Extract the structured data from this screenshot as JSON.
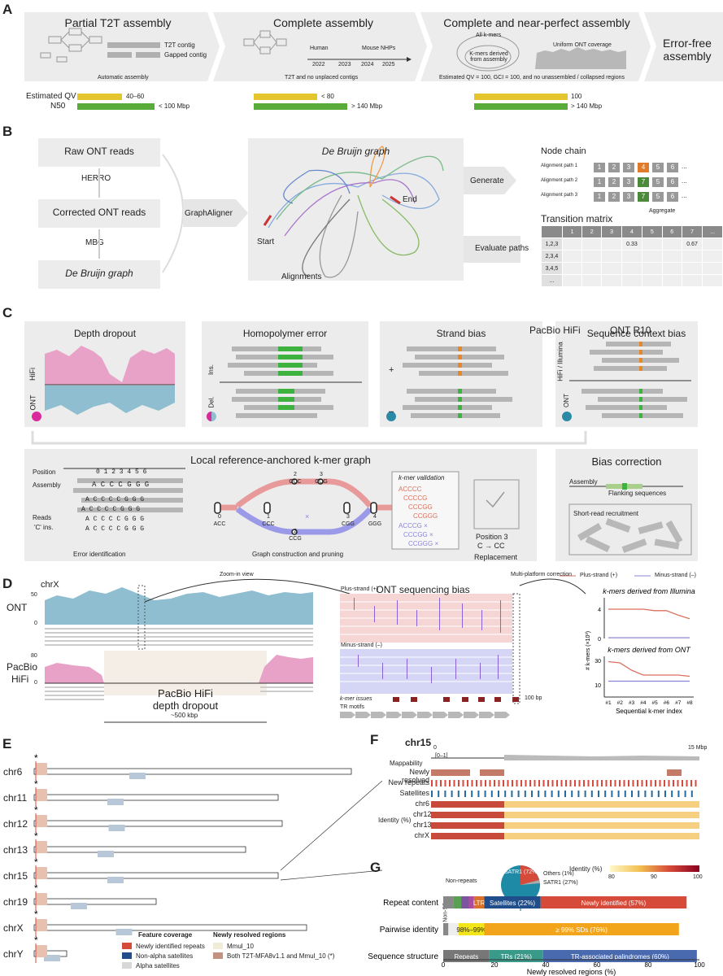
{
  "panels": {
    "a": "A",
    "b": "B",
    "c": "C",
    "d": "D",
    "e": "E",
    "f": "F",
    "g": "G"
  },
  "panelA": {
    "stage1": {
      "title": "Partial T2T assembly",
      "contig1": "T2T contig",
      "contig2": "Gapped contig",
      "caption": "Automatic assembly"
    },
    "stage2": {
      "title": "Complete assembly",
      "species": [
        "Human",
        "Mouse",
        "NHPs"
      ],
      "years": [
        "2022",
        "2023",
        "2024",
        "2025"
      ],
      "caption": "T2T and no unplaced contigs"
    },
    "stage3": {
      "title": "Complete and near-perfect assembly",
      "kmers": "All k-mers",
      "kmers_derived": "K-mers derived from assembly",
      "coverage": "Uniform ONT coverage",
      "caption": "Estimated QV = 100, GCI = 100, and no unassembled / collapsed regions"
    },
    "stage4": {
      "title": "Error-free assembly"
    },
    "metric_qv": "Estimated QV",
    "metric_n50": "N50",
    "qv_values": [
      "40–60",
      "< 80",
      "100"
    ],
    "n50_values": [
      "< 100 Mbp",
      "> 140 Mbp",
      "> 140 Mbp"
    ]
  },
  "panelB": {
    "raw": "Raw ONT reads",
    "herro": "HERRO",
    "corrected": "Corrected ONT reads",
    "mbg": "MBG",
    "dbg": "De Bruijn graph",
    "graphaligner": "GraphAligner",
    "graph_title": "De Bruijn graph",
    "start": "Start",
    "end": "End",
    "alignments": "Alignments",
    "generate": "Generate",
    "evaluate": "Evaluate paths",
    "node_chain": "Node chain",
    "paths": [
      "Alignment path 1",
      "Alignment path 2",
      "Alignment path 3"
    ],
    "path_nodes": [
      [
        "1",
        "2",
        "3",
        "4",
        "5",
        "6",
        "..."
      ],
      [
        "1",
        "2",
        "3",
        "7",
        "5",
        "6",
        "..."
      ],
      [
        "1",
        "2",
        "3",
        "7",
        "5",
        "6",
        "..."
      ]
    ],
    "aggregate": "Aggregate",
    "matrix_title": "Transition matrix",
    "matrix_header": [
      "",
      "1",
      "2",
      "3",
      "4",
      "5",
      "6",
      "7",
      "..."
    ],
    "matrix_rows": [
      [
        "1,2,3",
        "",
        "",
        "",
        "0.33",
        "",
        "",
        "0.67",
        ""
      ],
      [
        "2,3,4",
        "",
        "",
        "",
        "",
        "",
        "",
        "",
        ""
      ],
      [
        "3,4,5",
        "",
        "",
        "",
        "",
        "",
        "",
        "",
        ""
      ],
      [
        "...",
        "",
        "",
        "",
        "",
        "",
        "",
        "",
        ""
      ]
    ]
  },
  "panelC": {
    "legend_hifi": "PacBio HiFi",
    "legend_ont": "ONT R10",
    "depth": "Depth dropout",
    "homopolymer": "Homopolymer error",
    "strand": "Strand bias",
    "context": "Sequence context bias",
    "hifi_lab": "HiFi",
    "ont_lab": "ONT",
    "ins": "Ins.",
    "del": "Del.",
    "hifi_illumina": "HiFi / Illumina",
    "plus": "+",
    "minus": "–",
    "graph_title": "Local reference-anchored k-mer graph",
    "position": "Position",
    "positions": "0 1 2 3 4 5 6",
    "assembly": "Assembly",
    "assembly_seq": "A C C C G G G",
    "reads": "Reads",
    "c_ins": "'C' ins.",
    "read_seqs": [
      "A C C C C G G G",
      "A C C C C G G G",
      "A C C C C G G G",
      "A C C C C G G G"
    ],
    "error_id": "Error identification",
    "graph_build": "Graph construction and pruning",
    "kmer_nodes": [
      {
        "n": "0",
        "s": "ACC"
      },
      {
        "n": "1",
        "s": "CCC"
      },
      {
        "n": "2",
        "s": "CCC"
      },
      {
        "n": "3",
        "s": "CCG"
      },
      {
        "n": "2",
        "s": "CCG"
      },
      {
        "n": "3",
        "s": "CGG"
      },
      {
        "n": "4",
        "s": "GGG"
      }
    ],
    "kmer_validation": "k-mer validation",
    "valid_kmers": [
      "ACCCC",
      "CCCCG",
      "CCCGG",
      "CCGGG"
    ],
    "invalid_kmers": [
      "ACCCG",
      "CCCGG",
      "CCGGG"
    ],
    "position3": "Position 3",
    "change": "C → CC",
    "replacement": "Replacement",
    "bias_correction": "Bias correction",
    "assembly2": "Assembly",
    "flanking": "Flanking sequences",
    "recruitment": "Short-read recruitment"
  },
  "panelD": {
    "chr": "chrX",
    "ont": "ONT",
    "pacbio": "PacBio",
    "hifi": "HiFi",
    "ont_max": "50",
    "ont_min": "0",
    "hifi_max": "80",
    "hifi_min": "0",
    "dropout": "PacBio HiFi depth dropout",
    "span": "~500 kbp",
    "zoom": "Zoom-in view",
    "bias_title": "ONT sequencing bias",
    "plus_strand": "Plus-strand (+)",
    "minus_strand": "Minus-strand (–)",
    "kmer_issues": "k-mer issues",
    "tr_motifs": "TR motifs",
    "scale": "100 bp",
    "multi": "Multi-platform correction",
    "legend_plus": "Plus-strand (+)",
    "legend_minus": "Minus-strand (–)"
  },
  "chart_data": [
    {
      "type": "line",
      "title": "k-mers derived from Illumina",
      "xlabel": "Sequential k-mer index",
      "ylabel": "# k-mers (×10³)",
      "categories": [
        "#1",
        "#2",
        "#3",
        "#4",
        "#5",
        "#6",
        "#7",
        "#8"
      ],
      "ylim": [
        0,
        5
      ],
      "series": [
        {
          "name": "Plus-strand (+)",
          "color": "#d9725f",
          "values": [
            4,
            4,
            4,
            4,
            3.8,
            3.8,
            3.2,
            2.7
          ]
        },
        {
          "name": "Minus-strand (–)",
          "color": "#8a86d6",
          "values": [
            0.1,
            0.1,
            0.1,
            0.1,
            0.1,
            0.1,
            0.1,
            0.1
          ]
        }
      ]
    },
    {
      "type": "line",
      "title": "k-mers derived from ONT",
      "xlabel": "Sequential k-mer index",
      "ylabel": "# k-mers (×10³)",
      "categories": [
        "#1",
        "#2",
        "#3",
        "#4",
        "#5",
        "#6",
        "#7",
        "#8"
      ],
      "ylim": [
        0,
        30
      ],
      "series": [
        {
          "name": "Plus-strand (+)",
          "color": "#d9725f",
          "values": [
            29,
            28,
            22,
            18,
            18,
            18,
            18,
            17
          ]
        },
        {
          "name": "Minus-strand (–)",
          "color": "#8a86d6",
          "values": [
            13,
            13,
            13,
            13,
            13,
            13,
            13,
            13
          ]
        }
      ]
    },
    {
      "type": "bar",
      "title": "",
      "xlabel": "Newly resolved regions (%)",
      "xlim": [
        0,
        100
      ],
      "xticks": [
        "0",
        "20",
        "40",
        "60",
        "80",
        "100"
      ],
      "rows": [
        {
          "label": "Repeat content",
          "segments": [
            {
              "label": "",
              "value": 4,
              "color": "#888"
            },
            {
              "label": "",
              "value": 3,
              "color": "#5aa052"
            },
            {
              "label": "",
              "value": 3,
              "color": "#7b55a0"
            },
            {
              "label": "",
              "value": 2,
              "color": "#b04aa0"
            },
            {
              "label": "LTR",
              "value": 4,
              "color": "#d9712a"
            },
            {
              "label": "Satellites (22%)",
              "value": 22,
              "color": "#204e8a"
            },
            {
              "label": "Newly identified (57%)",
              "value": 57,
              "color": "#d64a3a"
            }
          ]
        },
        {
          "label": "Pairwise identity",
          "segments": [
            {
              "label": "",
              "value": 2,
              "color": "#888"
            },
            {
              "label": "",
              "value": 4,
              "color": "#eee"
            },
            {
              "label": "98%–99%",
              "value": 10,
              "color": "#f2e51a"
            },
            {
              "label": "≥ 99% SDs (76%)",
              "value": 76,
              "color": "#f2a51a"
            }
          ]
        },
        {
          "label": "Sequence structure",
          "segments": [
            {
              "label": "Repeats",
              "value": 18,
              "color": "#777"
            },
            {
              "label": "TRs (21%)",
              "value": 21,
              "color": "#3a9a8a"
            },
            {
              "label": "TR-associated palindromes (60%)",
              "value": 60,
              "color": "#4a6ab0"
            }
          ]
        }
      ]
    }
  ],
  "panelE": {
    "chrs": [
      "chr6",
      "chr11",
      "chr12",
      "chr13",
      "chr15",
      "chr19",
      "chrX",
      "chrY"
    ],
    "legend_feature": "Feature coverage",
    "legend_new": "Newly resolved regions",
    "f1": "Newly identified repeats",
    "f2": "Non-alpha satellites",
    "f3": "Alpha satellites",
    "n1": "Mmul_10",
    "n2": "Both T2T-MFA8v1.1 and Mmul_10 (*)"
  },
  "panelF": {
    "chr": "chr15",
    "start": "0",
    "end": "15 Mbp",
    "mappability": "Mappability",
    "range": "[0–1]",
    "rows": [
      "Newly resolved",
      "New repeats",
      "Satellites",
      "chr6",
      "chr12",
      "chr13",
      "chrX"
    ],
    "identity": "Identity (%)",
    "legend": "Identity (%)",
    "ticks": [
      "80",
      "90",
      "100"
    ]
  },
  "panelG": {
    "pie_satr": "SATR1 (72%)",
    "pie_others": "Others (1%)",
    "pie_satr1": "SATR1 (27%)",
    "non_repeats": "Non-repeats",
    "non_sds": "Non-SDs"
  }
}
